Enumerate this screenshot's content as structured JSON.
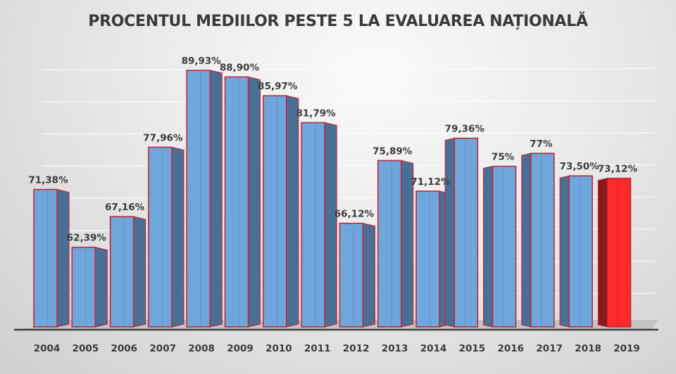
{
  "chart_data": {
    "type": "bar",
    "title": "PROCENTUL MEDIILOR PESTE 5 LA EVALUAREA NAȚIONALĂ",
    "xlabel": "",
    "ylabel": "",
    "ylim": [
      50,
      95
    ],
    "grid": true,
    "legend": "none",
    "categories": [
      "2004",
      "2005",
      "2006",
      "2007",
      "2008",
      "2009",
      "2010",
      "2011",
      "2012",
      "2013",
      "2014",
      "2015",
      "2016",
      "2017",
      "2018",
      "2019"
    ],
    "values": [
      71.38,
      62.39,
      67.16,
      77.96,
      89.93,
      88.9,
      85.97,
      81.79,
      66.12,
      75.89,
      71.12,
      79.36,
      75,
      77,
      73.5,
      73.12
    ],
    "data_labels": [
      "71,38%",
      "62,39%",
      "67,16%",
      "77,96%",
      "89,93%",
      "88,90%",
      "85,97%",
      "81,79%",
      "66,12%",
      "75,89%",
      "71,12%",
      "79,36%",
      "75%",
      "77%",
      "73,50%",
      "73,12%"
    ],
    "highlight_index": 15,
    "colors": {
      "bar_fill": "#6fa6dc",
      "bar_side": "#4a6f94",
      "bar_outline": "#c0283a",
      "highlight_fill": "#ff2a2a",
      "highlight_side": "#8b1a1a",
      "highlight_label": "#c62828",
      "label_text": "#3b3b3b"
    }
  }
}
